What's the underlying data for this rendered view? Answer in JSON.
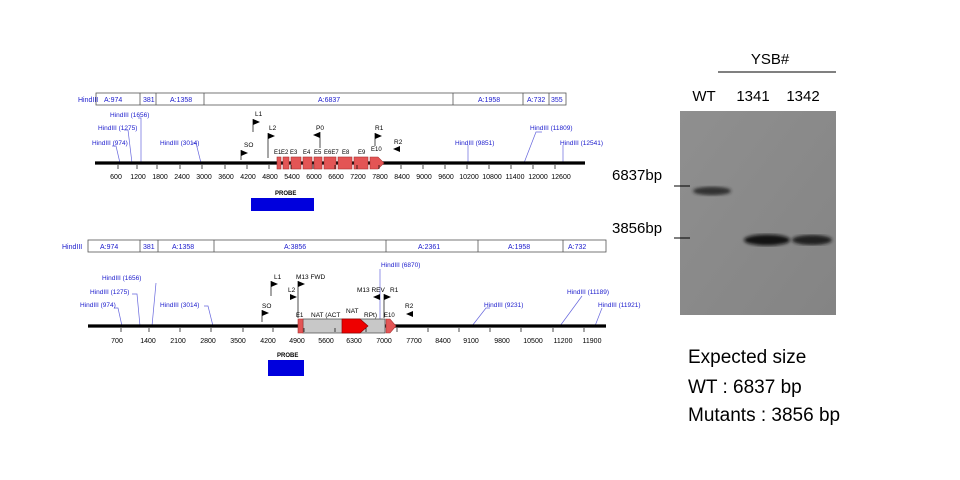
{
  "map1": {
    "fragments": [
      "HindIII",
      "A:974",
      "381",
      "A:1358",
      "A:6837",
      "A:1958",
      "A:732",
      "355"
    ],
    "sites": [
      "HindIII (1656)",
      "HindIII (1275)",
      "HindIII (974)",
      "HindIII (3014)",
      "HindIII (9851)",
      "HindIII (11809)",
      "HindIII (12541)"
    ],
    "ticks": [
      "600",
      "1200",
      "1800",
      "2400",
      "3000",
      "3600",
      "4200",
      "4800",
      "5400",
      "6000",
      "6600",
      "7200",
      "7800",
      "8400",
      "9000",
      "9600",
      "10200",
      "10800",
      "11400",
      "12000",
      "12600"
    ],
    "primers": [
      "L1",
      "L2",
      "SO",
      "P0",
      "R1",
      "R2"
    ],
    "exons": [
      "E1",
      "E2",
      "E3",
      "E4",
      "E5",
      "E6E7",
      "E8",
      "E9",
      "E10"
    ],
    "probe": "PROBE"
  },
  "map2": {
    "fragments": [
      "HindIII",
      "A:974",
      "381",
      "A:1358",
      "A:3856",
      "A:2361",
      "A:1958",
      "A:732"
    ],
    "sites": [
      "HindIII (1656)",
      "HindIII (1275)",
      "HindIII (974)",
      "HindIII (3014)",
      "HindIII (6870)",
      "HindIII (9231)",
      "HindIII (11189)",
      "HindIII (11921)"
    ],
    "ticks": [
      "700",
      "1400",
      "2100",
      "2800",
      "3500",
      "4200",
      "4900",
      "5600",
      "6300",
      "7000",
      "7700",
      "8400",
      "9100",
      "9800",
      "10500",
      "11200",
      "11900"
    ],
    "primers": [
      "L1",
      "M13 FWD",
      "L2",
      "SO",
      "M13 REV",
      "R1",
      "R2"
    ],
    "exons": [
      "E1",
      "E10"
    ],
    "cassette": [
      "NAT (ACT",
      "NAT",
      "RPt)"
    ],
    "probe": "PROBE"
  },
  "gel": {
    "group_label": "YSB#",
    "lanes": [
      "WT",
      "1341",
      "1342"
    ],
    "markers": [
      "6837bp",
      "3856bp"
    ]
  },
  "summary": {
    "title": "Expected size",
    "wt": "WT : 6837 bp",
    "mutants": "Mutants : 3856 bp"
  },
  "colors": {
    "fragment_text": "#1a1acc",
    "site_line": "#5555dd",
    "exon": "#e05050",
    "probe": "#0000dd",
    "cassette": "#c8c8c8",
    "nat": "#ee0000",
    "gel_bg": "#888888"
  }
}
